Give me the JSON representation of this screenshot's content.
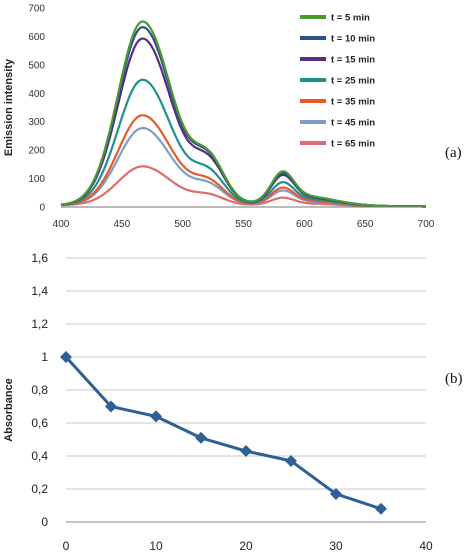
{
  "chart_data": [
    {
      "type": "line",
      "panel_label": "(a)",
      "ylabel": "Emission intensity",
      "xlabel": "",
      "xlim": [
        400,
        700
      ],
      "ylim": [
        0,
        700
      ],
      "xticks": [
        400,
        450,
        500,
        550,
        600,
        650,
        700
      ],
      "yticks": [
        0,
        100,
        200,
        300,
        400,
        500,
        600,
        700
      ],
      "legend_position": "top-right",
      "series": [
        {
          "name": "t = 5 min",
          "color": "#4a9a2e",
          "peak": 645,
          "shoulder": 260,
          "secondary": 95
        },
        {
          "name": "t = 10 min",
          "color": "#2e4f8a",
          "peak": 625,
          "shoulder": 255,
          "secondary": 90
        },
        {
          "name": "t = 15 min",
          "color": "#5a2d82",
          "peak": 585,
          "shoulder": 240,
          "secondary": 85
        },
        {
          "name": "t = 25 min",
          "color": "#1f8f8f",
          "peak": 440,
          "shoulder": 180,
          "secondary": 65
        },
        {
          "name": "t = 35 min",
          "color": "#e85a2a",
          "peak": 315,
          "shoulder": 130,
          "secondary": 50
        },
        {
          "name": "t = 45 min",
          "color": "#7f9cc8",
          "peak": 270,
          "shoulder": 110,
          "secondary": 42
        },
        {
          "name": "t = 65 min",
          "color": "#e06b6b",
          "peak": 135,
          "shoulder": 55,
          "secondary": 22
        }
      ]
    },
    {
      "type": "line",
      "panel_label": "(b)",
      "ylabel": "Absorbance",
      "xlabel": "",
      "xlim": [
        0,
        40
      ],
      "ylim": [
        0,
        1.6
      ],
      "xticks": [
        0,
        10,
        20,
        30,
        40
      ],
      "yticks": [
        "0",
        "0,2",
        "0,4",
        "0,6",
        "0,8",
        "1",
        "1,2",
        "1,4",
        "1,6"
      ],
      "grid": true,
      "color": "#2e5f95",
      "x": [
        0,
        5,
        10,
        15,
        20,
        25,
        30,
        35
      ],
      "y": [
        1.0,
        0.7,
        0.64,
        0.51,
        0.43,
        0.37,
        0.17,
        0.08
      ]
    }
  ]
}
